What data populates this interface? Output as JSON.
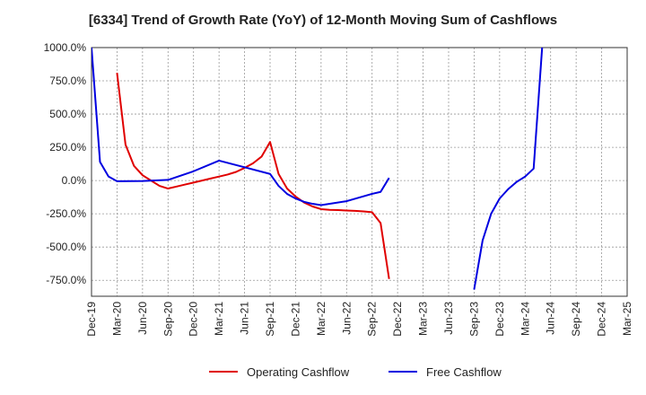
{
  "chart_data": {
    "type": "line",
    "title": "[6334]  Trend of Growth Rate (YoY) of 12-Month Moving Sum of Cashflows",
    "xlabel": "",
    "ylabel": "",
    "x_ticks": [
      "Dec-19",
      "Mar-20",
      "Jun-20",
      "Sep-20",
      "Dec-20",
      "Mar-21",
      "Jun-21",
      "Sep-21",
      "Dec-21",
      "Mar-22",
      "Jun-22",
      "Sep-22",
      "Dec-22",
      "Mar-23",
      "Jun-23",
      "Sep-23",
      "Dec-23",
      "Mar-24",
      "Jun-24",
      "Sep-24",
      "Dec-24",
      "Mar-25"
    ],
    "y_ticks": [
      "1000.0%",
      "750.0%",
      "500.0%",
      "250.0%",
      "0.0%",
      "-250.0%",
      "-500.0%",
      "-750.0%"
    ],
    "y_tick_values": [
      1000,
      750,
      500,
      250,
      0,
      -250,
      -500,
      -750
    ],
    "ylim": [
      -870,
      1000
    ],
    "grid": true,
    "legend_position": "bottom-center",
    "series": [
      {
        "name": "Operating Cashflow",
        "color": "#e00000",
        "x": [
          "2020-03",
          "2020-04",
          "2020-05",
          "2020-06",
          "2020-07",
          "2020-08",
          "2020-09",
          "2020-10",
          "2020-11",
          "2020-12",
          "2021-01",
          "2021-02",
          "2021-03",
          "2021-04",
          "2021-05",
          "2021-06",
          "2021-07",
          "2021-08",
          "2021-09",
          "2021-10",
          "2021-11",
          "2021-12",
          "2022-01",
          "2022-02",
          "2022-03",
          "2022-04",
          "2022-05",
          "2022-06",
          "2022-07",
          "2022-08",
          "2022-09",
          "2022-10",
          "2022-11"
        ],
        "values": [
          810,
          270,
          110,
          40,
          0,
          -40,
          -60,
          -45,
          -30,
          -15,
          0,
          15,
          30,
          45,
          65,
          95,
          130,
          180,
          290,
          50,
          -60,
          -120,
          -165,
          -195,
          -215,
          -220,
          -222,
          -225,
          -228,
          -232,
          -238,
          -320,
          -740
        ]
      },
      {
        "name": "Free Cashflow",
        "color": "#0000e0",
        "x": [
          "2019-12",
          "2020-01",
          "2020-02",
          "2020-03",
          "2020-06",
          "2020-09",
          "2020-12",
          "2021-03",
          "2021-06",
          "2021-09",
          "2021-10",
          "2021-11",
          "2021-12",
          "2022-01",
          "2022-02",
          "2022-03",
          "2022-06",
          "2022-09",
          "2022-10",
          "2022-11",
          null,
          "2023-09",
          "2023-10",
          "2023-11",
          "2023-12",
          "2024-01",
          "2024-02",
          "2024-03",
          "2024-04",
          "2024-05"
        ],
        "values": [
          1000,
          140,
          30,
          -5,
          -3,
          5,
          70,
          150,
          100,
          50,
          -40,
          -100,
          -135,
          -160,
          -175,
          -185,
          -155,
          -100,
          -85,
          20,
          null,
          -820,
          -450,
          -250,
          -135,
          -65,
          -10,
          30,
          90,
          1000
        ]
      }
    ]
  }
}
